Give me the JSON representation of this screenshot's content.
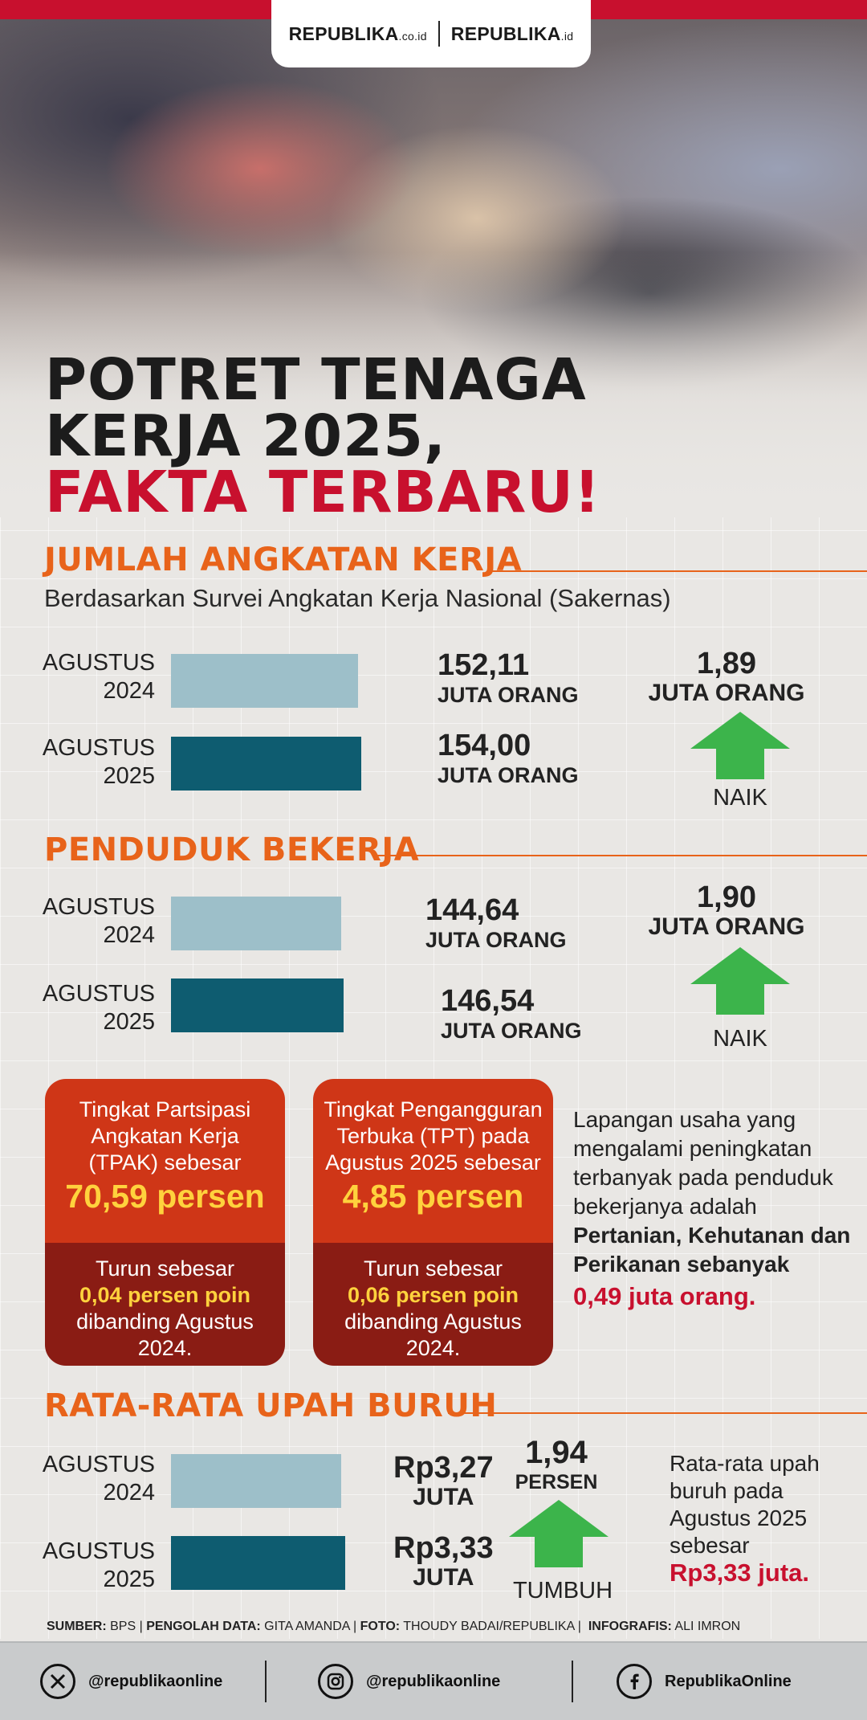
{
  "brand": {
    "logo1_main": "REPUBLIKA",
    "logo1_tld": ".co.id",
    "logo2_main": "REPUBLIKA",
    "logo2_tld": ".id"
  },
  "headline": {
    "line1": "POTRET TENAGA",
    "line2": "KERJA 2025,",
    "line3": "FAKTA TERBARU!"
  },
  "section1": {
    "title": "JUMLAH ANGKATAN KERJA",
    "subtitle": "Berdasarkan Survei Angkatan Kerja Nasional (Sakernas)",
    "rows": [
      {
        "year_a": "AGUSTUS",
        "year_b": "2024",
        "value": "152,11",
        "unit": "JUTA ORANG",
        "amount": 152.11
      },
      {
        "year_a": "AGUSTUS",
        "year_b": "2025",
        "value": "154,00",
        "unit": "JUTA ORANG",
        "amount": 154.0
      }
    ],
    "change": {
      "value": "1,89",
      "unit": "JUTA ORANG",
      "label": "NAIK"
    }
  },
  "section2": {
    "title": "PENDUDUK BEKERJA",
    "rows": [
      {
        "year_a": "AGUSTUS",
        "year_b": "2024",
        "value": "144,64",
        "unit": "JUTA ORANG",
        "amount": 144.64
      },
      {
        "year_a": "AGUSTUS",
        "year_b": "2025",
        "value": "146,54",
        "unit": "JUTA ORANG",
        "amount": 146.54
      }
    ],
    "change": {
      "value": "1,90",
      "unit": "JUTA ORANG",
      "label": "NAIK"
    }
  },
  "box_tpak": {
    "line1": "Tingkat Partsipasi",
    "line2": "Angkatan Kerja",
    "line3": "(TPAK) sebesar",
    "big": "70,59 persen",
    "b1": "Turun sebesar",
    "b2": "0,04 persen poin",
    "b3": "dibanding Agustus",
    "b4": "2024."
  },
  "box_tpt": {
    "line1": "Tingkat Pengangguran",
    "line2": "Terbuka (TPT) pada",
    "line3": "Agustus 2025 sebesar",
    "big": "4,85 persen",
    "b1": "Turun sebesar",
    "b2": "0,06 persen poin",
    "b3": "dibanding Agustus",
    "b4": "2024."
  },
  "side_note": {
    "l1": "Lapangan usaha yang",
    "l2": "mengalami peningkatan",
    "l3": "terbanyak pada penduduk",
    "l4": "bekerjanya adalah",
    "l5": "Pertanian, Kehutanan dan",
    "l6": "Perikanan sebanyak",
    "l7": "0,49 juta orang."
  },
  "section3": {
    "title": "RATA-RATA UPAH BURUH",
    "rows": [
      {
        "year_a": "AGUSTUS",
        "year_b": "2024",
        "value": "Rp3,27",
        "unit": "JUTA",
        "amount": 3.27
      },
      {
        "year_a": "AGUSTUS",
        "year_b": "2025",
        "value": "Rp3,33",
        "unit": "JUTA",
        "amount": 3.33
      }
    ],
    "change": {
      "value": "1,94",
      "unit": "PERSEN",
      "label": "TUMBUH"
    },
    "note": {
      "l1": "Rata-rata upah",
      "l2": "buruh pada",
      "l3": "Agustus 2025",
      "l4": "sebesar",
      "l5": "Rp3,33 juta."
    }
  },
  "credits": {
    "k1": "SUMBER:",
    "v1": "BPS",
    "k2": "PENGOLAH DATA:",
    "v2": "GITA AMANDA",
    "k3": "FOTO:",
    "v3": "THOUDY BADAI/REPUBLIKA",
    "k4": "INFOGRAFIS:",
    "v4": "ALI IMRON"
  },
  "footer": {
    "x_handle": "@republikaonline",
    "x_icon": "x-logo-icon",
    "ig_handle": "@republikaonline",
    "ig_icon": "instagram-icon",
    "fb_handle": "RepublikaOnline",
    "fb_icon": "facebook-icon"
  },
  "colors": {
    "brand_red": "#c8102e",
    "section_orange": "#e8631a",
    "bar_light": "#9dbfc9",
    "bar_dark": "#0e5c70",
    "arrow_green": "#3cb44b"
  }
}
